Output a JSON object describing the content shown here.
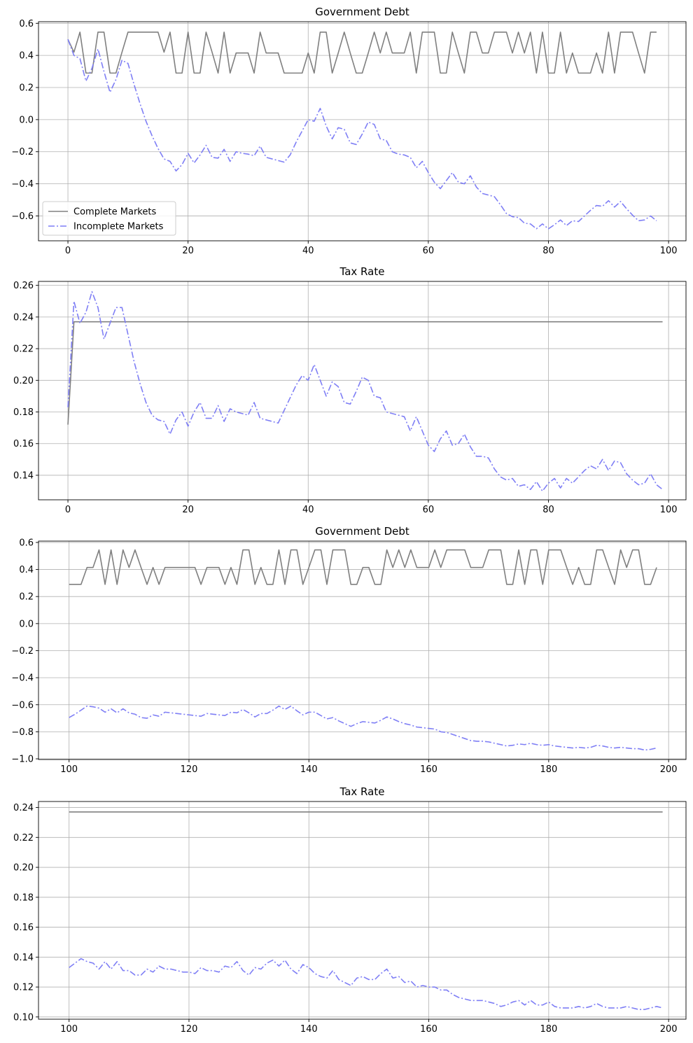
{
  "chart_data": [
    {
      "type": "line",
      "title": "Government Debt",
      "xlabel": "",
      "ylabel": "",
      "xlim": [
        -4.9,
        102.9
      ],
      "ylim": [
        -0.755,
        0.61
      ],
      "xticks": [
        0,
        20,
        40,
        60,
        80,
        100
      ],
      "yticks": [
        -0.6,
        -0.4,
        -0.2,
        0.0,
        0.2,
        0.4,
        0.6
      ],
      "ytick_format": 1,
      "grid": true,
      "legend": "lower-left",
      "x_start": 0,
      "series": [
        {
          "name": "Complete Markets",
          "color": "#808080",
          "style": "solid",
          "values": [
            0.5,
            0.42,
            0.545,
            0.29,
            0.29,
            0.545,
            0.545,
            0.29,
            0.29,
            0.42,
            0.545,
            0.545,
            0.545,
            0.545,
            0.545,
            0.545,
            0.42,
            0.545,
            0.29,
            0.29,
            0.545,
            0.29,
            0.29,
            0.545,
            0.42,
            0.29,
            0.545,
            0.29,
            0.415,
            0.415,
            0.415,
            0.29,
            0.545,
            0.415,
            0.415,
            0.415,
            0.29,
            0.29,
            0.29,
            0.29,
            0.415,
            0.29,
            0.545,
            0.545,
            0.29,
            0.415,
            0.545,
            0.415,
            0.29,
            0.29,
            0.415,
            0.545,
            0.415,
            0.545,
            0.415,
            0.415,
            0.415,
            0.545,
            0.29,
            0.545,
            0.545,
            0.545,
            0.29,
            0.29,
            0.545,
            0.415,
            0.29,
            0.545,
            0.545,
            0.415,
            0.415,
            0.545,
            0.545,
            0.545,
            0.415,
            0.545,
            0.415,
            0.545,
            0.29,
            0.545,
            0.29,
            0.29,
            0.545,
            0.29,
            0.415,
            0.29,
            0.29,
            0.29,
            0.415,
            0.29,
            0.545,
            0.29,
            0.545,
            0.545,
            0.545,
            0.415,
            0.29,
            0.545,
            0.545
          ]
        },
        {
          "name": "Incomplete Markets",
          "color": "#7f7ff5",
          "style": "dashdot",
          "values": [
            0.5,
            0.4,
            0.38,
            0.24,
            0.32,
            0.44,
            0.3,
            0.17,
            0.25,
            0.37,
            0.35,
            0.22,
            0.1,
            -0.01,
            -0.1,
            -0.18,
            -0.245,
            -0.26,
            -0.32,
            -0.28,
            -0.21,
            -0.27,
            -0.22,
            -0.16,
            -0.235,
            -0.24,
            -0.185,
            -0.26,
            -0.2,
            -0.21,
            -0.215,
            -0.225,
            -0.165,
            -0.235,
            -0.245,
            -0.255,
            -0.265,
            -0.22,
            -0.14,
            -0.07,
            0.0,
            -0.01,
            0.07,
            -0.04,
            -0.12,
            -0.05,
            -0.06,
            -0.145,
            -0.155,
            -0.09,
            -0.015,
            -0.03,
            -0.12,
            -0.13,
            -0.2,
            -0.215,
            -0.22,
            -0.235,
            -0.3,
            -0.26,
            -0.33,
            -0.39,
            -0.43,
            -0.38,
            -0.33,
            -0.39,
            -0.4,
            -0.35,
            -0.42,
            -0.46,
            -0.47,
            -0.48,
            -0.53,
            -0.585,
            -0.605,
            -0.61,
            -0.645,
            -0.65,
            -0.68,
            -0.65,
            -0.68,
            -0.655,
            -0.625,
            -0.66,
            -0.63,
            -0.635,
            -0.6,
            -0.565,
            -0.535,
            -0.54,
            -0.505,
            -0.545,
            -0.51,
            -0.555,
            -0.595,
            -0.63,
            -0.625,
            -0.6,
            -0.63
          ]
        }
      ]
    },
    {
      "type": "line",
      "title": "Tax Rate",
      "xlabel": "",
      "ylabel": "",
      "xlim": [
        -4.9,
        102.9
      ],
      "ylim": [
        0.1245,
        0.2625
      ],
      "xticks": [
        0,
        20,
        40,
        60,
        80,
        100
      ],
      "yticks": [
        0.14,
        0.16,
        0.18,
        0.2,
        0.22,
        0.24,
        0.26
      ],
      "ytick_format": 2,
      "grid": true,
      "legend": "none",
      "x_start": 0,
      "series": [
        {
          "name": "Complete Markets",
          "color": "#808080",
          "style": "solid",
          "constant_after_first": true,
          "values": [
            0.172,
            0.237
          ]
        },
        {
          "name": "Incomplete Markets",
          "color": "#7f7ff5",
          "style": "dashdot",
          "values": [
            0.183,
            0.25,
            0.236,
            0.243,
            0.256,
            0.246,
            0.226,
            0.236,
            0.246,
            0.246,
            0.229,
            0.212,
            0.198,
            0.186,
            0.178,
            0.175,
            0.174,
            0.166,
            0.175,
            0.18,
            0.171,
            0.18,
            0.186,
            0.176,
            0.176,
            0.184,
            0.174,
            0.182,
            0.18,
            0.179,
            0.178,
            0.186,
            0.176,
            0.175,
            0.174,
            0.173,
            0.181,
            0.189,
            0.197,
            0.203,
            0.2,
            0.21,
            0.2,
            0.19,
            0.199,
            0.196,
            0.186,
            0.185,
            0.193,
            0.202,
            0.2,
            0.19,
            0.189,
            0.18,
            0.179,
            0.178,
            0.177,
            0.168,
            0.177,
            0.168,
            0.159,
            0.155,
            0.163,
            0.168,
            0.159,
            0.16,
            0.166,
            0.158,
            0.152,
            0.152,
            0.151,
            0.144,
            0.139,
            0.137,
            0.138,
            0.133,
            0.134,
            0.131,
            0.136,
            0.13,
            0.135,
            0.138,
            0.132,
            0.138,
            0.135,
            0.139,
            0.143,
            0.146,
            0.144,
            0.15,
            0.143,
            0.149,
            0.148,
            0.141,
            0.137,
            0.134,
            0.135,
            0.141,
            0.134,
            0.131
          ]
        }
      ]
    },
    {
      "type": "line",
      "title": "Government Debt",
      "xlabel": "",
      "ylabel": "",
      "xlim": [
        94.9,
        202.9
      ],
      "ylim": [
        -1.005,
        0.61
      ],
      "xticks": [
        100,
        120,
        140,
        160,
        180,
        200
      ],
      "yticks": [
        -1.0,
        -0.8,
        -0.6,
        -0.4,
        -0.2,
        0.0,
        0.2,
        0.4,
        0.6
      ],
      "ytick_format": 1,
      "grid": true,
      "legend": "none",
      "x_start": 100,
      "series": [
        {
          "name": "Complete Markets",
          "color": "#808080",
          "style": "solid",
          "values": [
            0.29,
            0.29,
            0.29,
            0.415,
            0.415,
            0.545,
            0.29,
            0.545,
            0.29,
            0.545,
            0.415,
            0.545,
            0.415,
            0.29,
            0.415,
            0.29,
            0.415,
            0.415,
            0.415,
            0.415,
            0.415,
            0.415,
            0.29,
            0.415,
            0.415,
            0.415,
            0.29,
            0.415,
            0.29,
            0.545,
            0.545,
            0.29,
            0.415,
            0.29,
            0.29,
            0.545,
            0.29,
            0.545,
            0.545,
            0.29,
            0.415,
            0.545,
            0.545,
            0.29,
            0.545,
            0.545,
            0.545,
            0.29,
            0.29,
            0.415,
            0.415,
            0.29,
            0.29,
            0.545,
            0.415,
            0.545,
            0.415,
            0.545,
            0.415,
            0.415,
            0.415,
            0.545,
            0.415,
            0.545,
            0.545,
            0.545,
            0.545,
            0.415,
            0.415,
            0.415,
            0.545,
            0.545,
            0.545,
            0.29,
            0.29,
            0.545,
            0.29,
            0.545,
            0.545,
            0.29,
            0.545,
            0.545,
            0.545,
            0.415,
            0.29,
            0.415,
            0.29,
            0.29,
            0.545,
            0.545,
            0.415,
            0.29,
            0.545,
            0.415,
            0.545,
            0.545,
            0.29,
            0.29,
            0.415
          ]
        },
        {
          "name": "Incomplete Markets",
          "color": "#7f7ff5",
          "style": "dashdot",
          "values": [
            -0.695,
            -0.67,
            -0.64,
            -0.61,
            -0.615,
            -0.625,
            -0.655,
            -0.63,
            -0.66,
            -0.63,
            -0.66,
            -0.67,
            -0.695,
            -0.7,
            -0.675,
            -0.685,
            -0.655,
            -0.66,
            -0.665,
            -0.67,
            -0.675,
            -0.68,
            -0.685,
            -0.665,
            -0.67,
            -0.675,
            -0.68,
            -0.655,
            -0.66,
            -0.635,
            -0.66,
            -0.69,
            -0.665,
            -0.665,
            -0.64,
            -0.61,
            -0.635,
            -0.61,
            -0.645,
            -0.675,
            -0.655,
            -0.655,
            -0.68,
            -0.705,
            -0.695,
            -0.72,
            -0.74,
            -0.76,
            -0.74,
            -0.725,
            -0.73,
            -0.735,
            -0.715,
            -0.69,
            -0.705,
            -0.725,
            -0.74,
            -0.75,
            -0.765,
            -0.77,
            -0.775,
            -0.78,
            -0.8,
            -0.805,
            -0.82,
            -0.835,
            -0.85,
            -0.865,
            -0.87,
            -0.87,
            -0.875,
            -0.885,
            -0.895,
            -0.905,
            -0.9,
            -0.89,
            -0.895,
            -0.885,
            -0.895,
            -0.9,
            -0.895,
            -0.905,
            -0.91,
            -0.915,
            -0.92,
            -0.915,
            -0.92,
            -0.915,
            -0.9,
            -0.905,
            -0.915,
            -0.92,
            -0.915,
            -0.92,
            -0.925,
            -0.925,
            -0.935,
            -0.93,
            -0.92
          ]
        }
      ]
    },
    {
      "type": "line",
      "title": "Tax Rate",
      "xlabel": "",
      "ylabel": "",
      "xlim": [
        94.9,
        202.9
      ],
      "ylim": [
        0.0985,
        0.244
      ],
      "xticks": [
        100,
        120,
        140,
        160,
        180,
        200
      ],
      "yticks": [
        0.1,
        0.12,
        0.14,
        0.16,
        0.18,
        0.2,
        0.22,
        0.24
      ],
      "ytick_format": 2,
      "grid": true,
      "legend": "none",
      "x_start": 100,
      "series": [
        {
          "name": "Complete Markets",
          "color": "#808080",
          "style": "solid",
          "constant_after_first": true,
          "values": [
            0.237,
            0.237
          ]
        },
        {
          "name": "Incomplete Markets",
          "color": "#7f7ff5",
          "style": "dashdot",
          "values": [
            0.133,
            0.136,
            0.139,
            0.137,
            0.136,
            0.132,
            0.137,
            0.132,
            0.137,
            0.131,
            0.131,
            0.128,
            0.128,
            0.132,
            0.13,
            0.134,
            0.132,
            0.132,
            0.131,
            0.13,
            0.13,
            0.129,
            0.133,
            0.131,
            0.131,
            0.13,
            0.134,
            0.133,
            0.137,
            0.131,
            0.128,
            0.133,
            0.132,
            0.136,
            0.138,
            0.134,
            0.138,
            0.132,
            0.129,
            0.135,
            0.133,
            0.129,
            0.127,
            0.126,
            0.131,
            0.125,
            0.123,
            0.121,
            0.126,
            0.127,
            0.125,
            0.125,
            0.129,
            0.132,
            0.126,
            0.127,
            0.123,
            0.124,
            0.12,
            0.121,
            0.12,
            0.12,
            0.118,
            0.118,
            0.115,
            0.113,
            0.112,
            0.111,
            0.111,
            0.111,
            0.11,
            0.109,
            0.107,
            0.108,
            0.11,
            0.111,
            0.108,
            0.111,
            0.108,
            0.108,
            0.11,
            0.107,
            0.106,
            0.106,
            0.106,
            0.107,
            0.106,
            0.107,
            0.109,
            0.107,
            0.106,
            0.106,
            0.106,
            0.107,
            0.106,
            0.105,
            0.105,
            0.106,
            0.107,
            0.106
          ]
        }
      ]
    }
  ]
}
